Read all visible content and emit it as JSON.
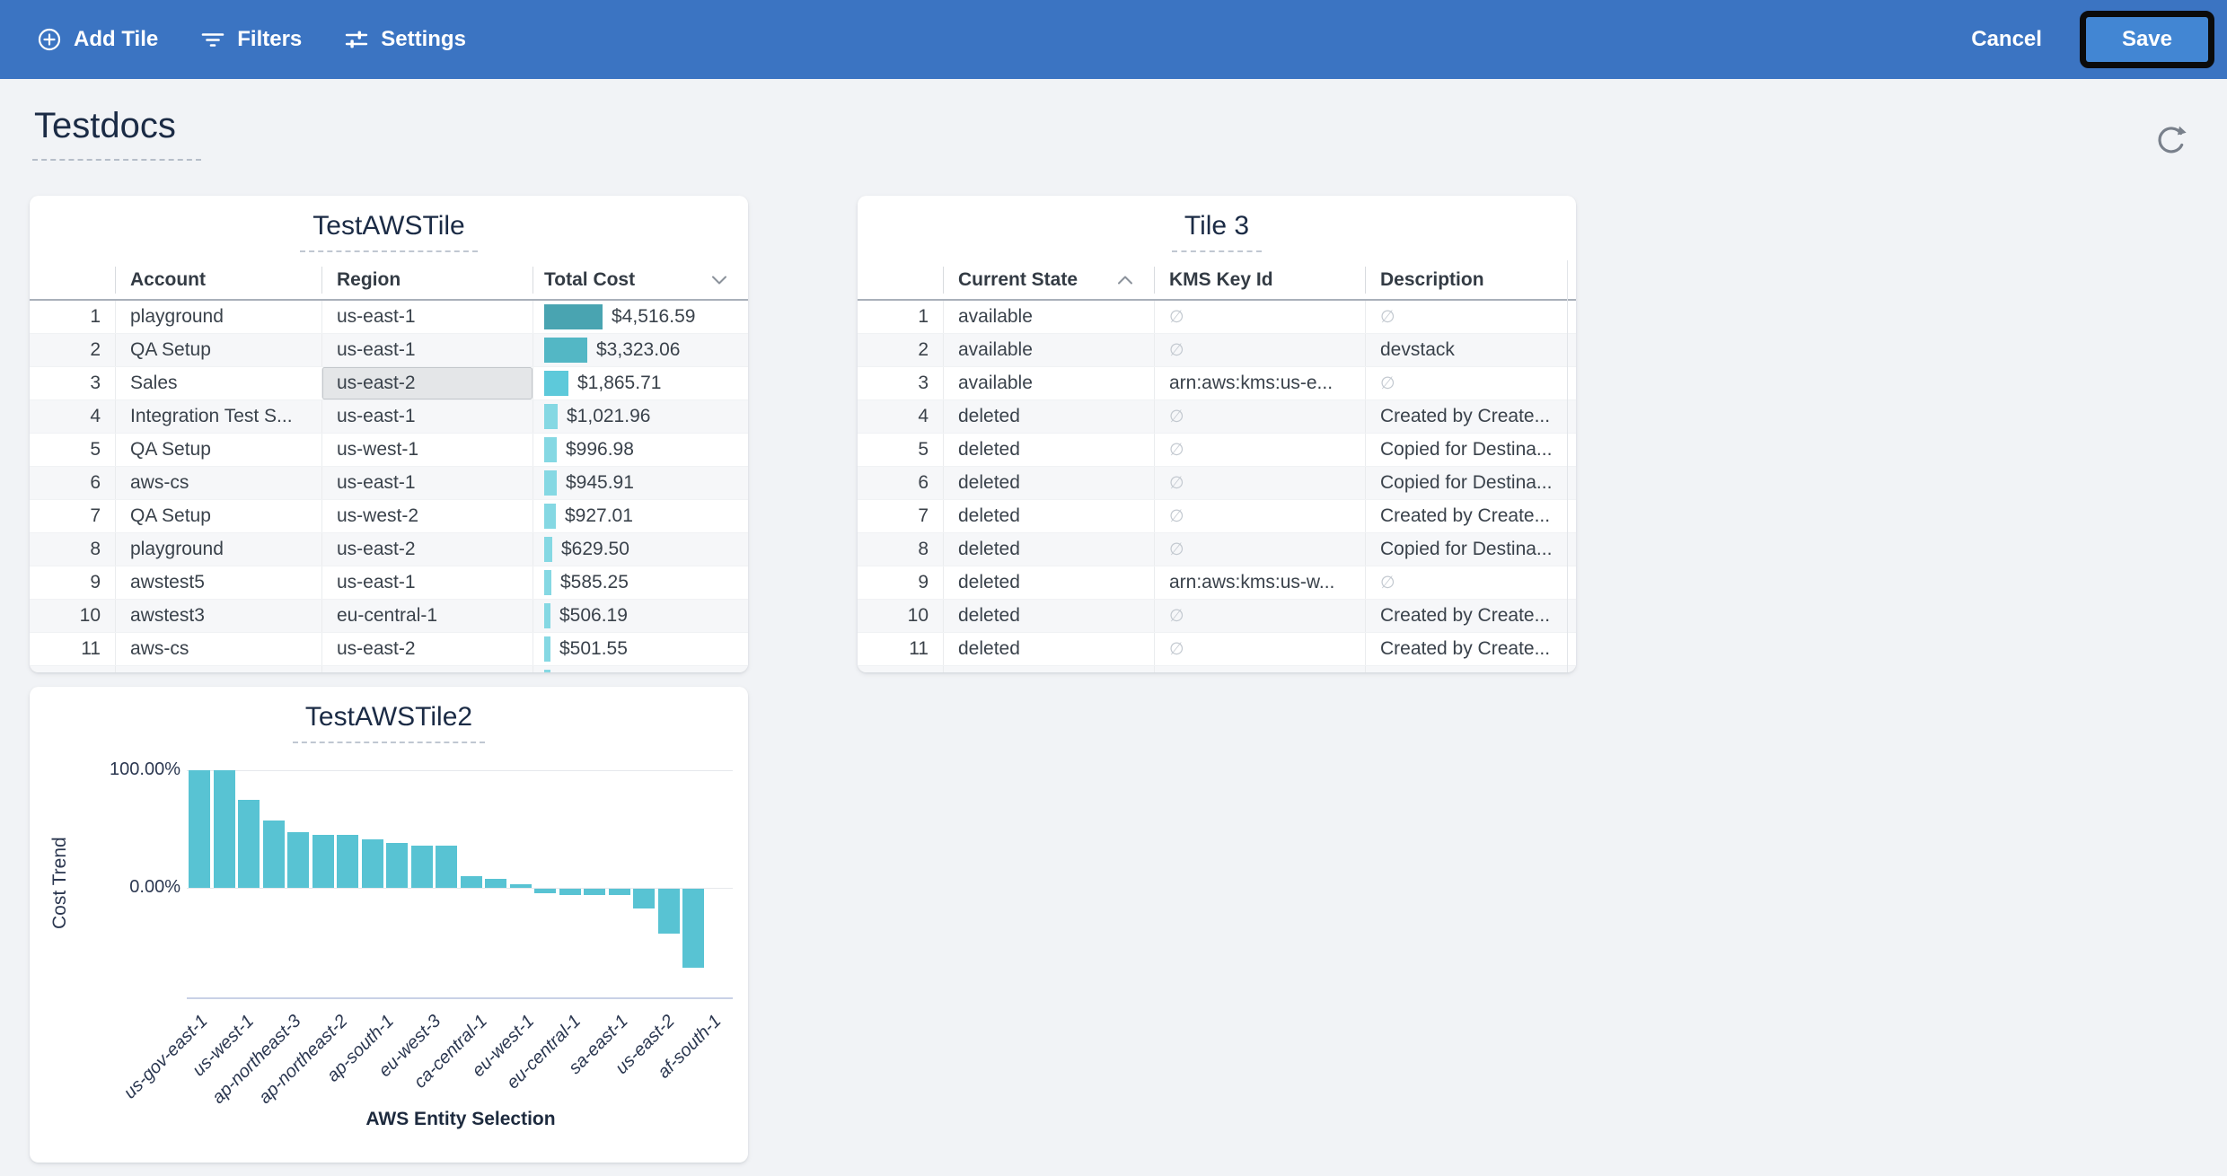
{
  "topbar": {
    "add_tile": "Add Tile",
    "filters": "Filters",
    "settings": "Settings",
    "cancel": "Cancel",
    "save": "Save"
  },
  "page": {
    "title": "Testdocs"
  },
  "colors": {
    "topbar": "#3b74c2",
    "save_bg": "#4286d3",
    "save_outline": "#0b0b0b",
    "table_bar_colors": [
      "#49a4b1",
      "#53b7c5",
      "#5dc9da",
      "#85d8e3"
    ],
    "selected_cell_bg": "#e4e6e8",
    "selected_cell_border": "#c3c7cb"
  },
  "tiles": {
    "aws_tile": {
      "title": "TestAWSTile",
      "columns": [
        "Account",
        "Region",
        "Total Cost"
      ],
      "sort_column": "Total Cost",
      "sort_dir": "desc",
      "max_value": 4516.59,
      "partial_row_visible": true,
      "rows": [
        {
          "n": 1,
          "account": "playground",
          "region": "us-east-1",
          "cost": "$4,516.59",
          "value": 4516.59
        },
        {
          "n": 2,
          "account": "QA Setup",
          "region": "us-east-1",
          "cost": "$3,323.06",
          "value": 3323.06
        },
        {
          "n": 3,
          "account": "Sales",
          "region": "us-east-2",
          "cost": "$1,865.71",
          "value": 1865.71,
          "region_selected": true
        },
        {
          "n": 4,
          "account": "Integration Test S...",
          "region": "us-east-1",
          "cost": "$1,021.96",
          "value": 1021.96
        },
        {
          "n": 5,
          "account": "QA Setup",
          "region": "us-west-1",
          "cost": "$996.98",
          "value": 996.98
        },
        {
          "n": 6,
          "account": "aws-cs",
          "region": "us-east-1",
          "cost": "$945.91",
          "value": 945.91
        },
        {
          "n": 7,
          "account": "QA Setup",
          "region": "us-west-2",
          "cost": "$927.01",
          "value": 927.01
        },
        {
          "n": 8,
          "account": "playground",
          "region": "us-east-2",
          "cost": "$629.50",
          "value": 629.5
        },
        {
          "n": 9,
          "account": "awstest5",
          "region": "us-east-1",
          "cost": "$585.25",
          "value": 585.25
        },
        {
          "n": 10,
          "account": "awstest3",
          "region": "eu-central-1",
          "cost": "$506.19",
          "value": 506.19
        },
        {
          "n": 11,
          "account": "aws-cs",
          "region": "us-east-2",
          "cost": "$501.55",
          "value": 501.55
        }
      ]
    },
    "tile3": {
      "title": "Tile 3",
      "columns": [
        "Current State",
        "KMS Key Id",
        "Description"
      ],
      "sort_column": "Current State",
      "sort_dir": "asc",
      "null_symbol": "∅",
      "rows": [
        {
          "n": 1,
          "state": "available",
          "kms": null,
          "desc": null
        },
        {
          "n": 2,
          "state": "available",
          "kms": null,
          "desc": "devstack"
        },
        {
          "n": 3,
          "state": "available",
          "kms": "arn:aws:kms:us-e...",
          "desc": null
        },
        {
          "n": 4,
          "state": "deleted",
          "kms": null,
          "desc": "Created by Create..."
        },
        {
          "n": 5,
          "state": "deleted",
          "kms": null,
          "desc": "Copied for Destina..."
        },
        {
          "n": 6,
          "state": "deleted",
          "kms": null,
          "desc": "Copied for Destina..."
        },
        {
          "n": 7,
          "state": "deleted",
          "kms": null,
          "desc": "Created by Create..."
        },
        {
          "n": 8,
          "state": "deleted",
          "kms": null,
          "desc": "Copied for Destina..."
        },
        {
          "n": 9,
          "state": "deleted",
          "kms": "arn:aws:kms:us-w...",
          "desc": null
        },
        {
          "n": 10,
          "state": "deleted",
          "kms": null,
          "desc": "Created by Create..."
        },
        {
          "n": 11,
          "state": "deleted",
          "kms": null,
          "desc": "Created by Create..."
        }
      ]
    }
  },
  "chart_data": {
    "type": "bar",
    "title": "TestAWSTile2",
    "xlabel": "AWS Entity Selection",
    "ylabel": "Cost Trend",
    "yticks": [
      100,
      0
    ],
    "ytick_labels": [
      "100.00%",
      "0.00%"
    ],
    "ylim": [
      -80,
      110
    ],
    "grid": true,
    "legend": false,
    "bar_color": "#58c3d3",
    "x_tick_labels": [
      "us-gov-east-1",
      "us-west-1",
      "ap-northeast-3",
      "ap-northeast-2",
      "ap-south-1",
      "eu-west-3",
      "ca-central-1",
      "eu-west-1",
      "eu-central-1",
      "sa-east-1",
      "us-east-2",
      "af-south-1"
    ],
    "values": [
      100,
      100,
      75,
      57,
      47,
      45,
      45,
      41,
      38,
      36,
      36,
      10,
      8,
      3,
      -4,
      -5,
      -5,
      -5,
      -17,
      -38,
      -67
    ]
  }
}
